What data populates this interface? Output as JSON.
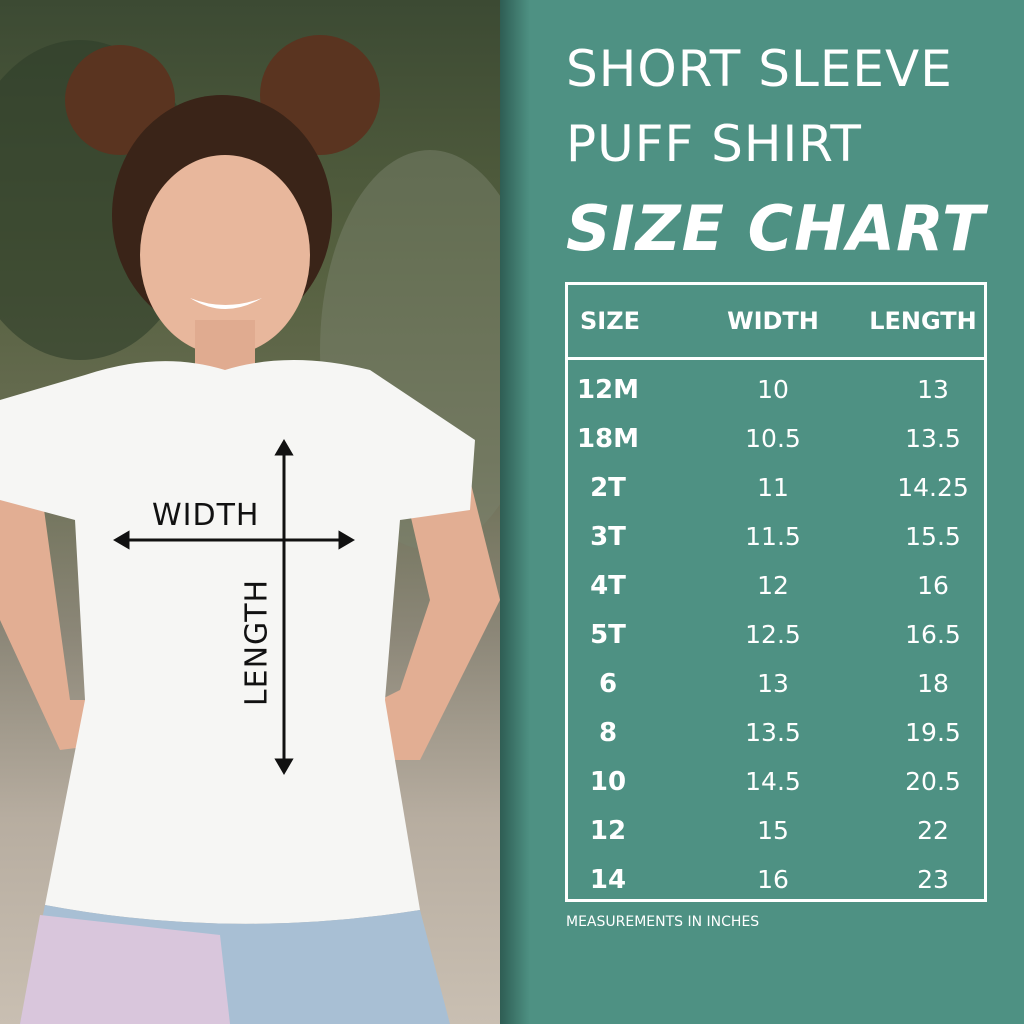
{
  "photo": {
    "width_label": "WIDTH",
    "length_label": "LENGTH"
  },
  "title": {
    "line1": "SHORT SLEEVE",
    "line2": "PUFF SHIRT",
    "line3": "SIZE CHART"
  },
  "colors": {
    "background": "#4e9183",
    "text": "#ffffff"
  },
  "table": {
    "headers": [
      "SIZE",
      "WIDTH",
      "LENGTH"
    ],
    "rows": [
      [
        "12M",
        "10",
        "13"
      ],
      [
        "18M",
        "10.5",
        "13.5"
      ],
      [
        "2T",
        "11",
        "14.25"
      ],
      [
        "3T",
        "11.5",
        "15.5"
      ],
      [
        "4T",
        "12",
        "16"
      ],
      [
        "5T",
        "12.5",
        "16.5"
      ],
      [
        "6",
        "13",
        "18"
      ],
      [
        "8",
        "13.5",
        "19.5"
      ],
      [
        "10",
        "14.5",
        "20.5"
      ],
      [
        "12",
        "15",
        "22"
      ],
      [
        "14",
        "16",
        "23"
      ]
    ]
  },
  "note": "MEASUREMENTS IN INCHES"
}
